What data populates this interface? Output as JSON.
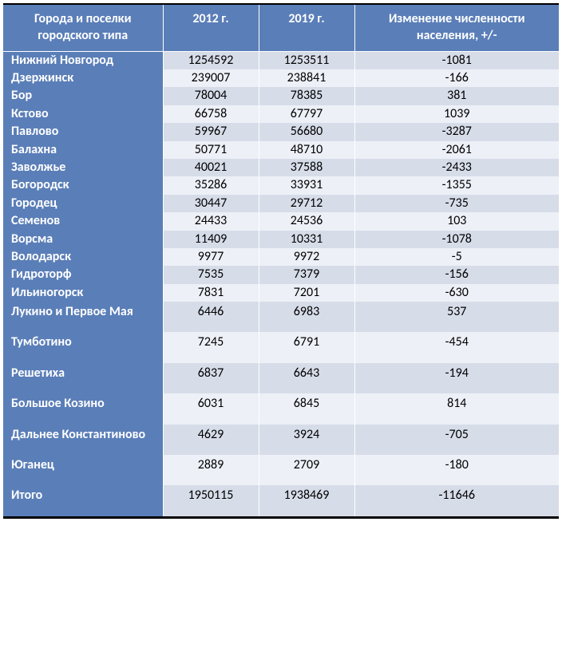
{
  "table": {
    "headers": {
      "city": "Города и поселки городского типа",
      "y2012": "2012 г.",
      "y2019": "2019 г.",
      "delta": "Изменение численности населения, +/-"
    },
    "rows": [
      {
        "city": "Нижний Новгород",
        "y2012": "1254592",
        "y2019": "1253511",
        "delta": "-1081",
        "tall": false
      },
      {
        "city": "Дзержинск",
        "y2012": "239007",
        "y2019": "238841",
        "delta": "-166",
        "tall": false
      },
      {
        "city": "Бор",
        "y2012": "78004",
        "y2019": "78385",
        "delta": "381",
        "tall": false
      },
      {
        "city": "Кстово",
        "y2012": "66758",
        "y2019": "67797",
        "delta": "1039",
        "tall": false
      },
      {
        "city": "Павлово",
        "y2012": "59967",
        "y2019": "56680",
        "delta": "-3287",
        "tall": false
      },
      {
        "city": "Балахна",
        "y2012": "50771",
        "y2019": "48710",
        "delta": "-2061",
        "tall": false
      },
      {
        "city": "Заволжье",
        "y2012": "40021",
        "y2019": "37588",
        "delta": "-2433",
        "tall": false
      },
      {
        "city": "Богородск",
        "y2012": "35286",
        "y2019": "33931",
        "delta": "-1355",
        "tall": false
      },
      {
        "city": "Городец",
        "y2012": "30447",
        "y2019": "29712",
        "delta": "-735",
        "tall": false
      },
      {
        "city": "Семенов",
        "y2012": "24433",
        "y2019": "24536",
        "delta": "103",
        "tall": false
      },
      {
        "city": "Ворсма",
        "y2012": "11409",
        "y2019": "10331",
        "delta": "-1078",
        "tall": false
      },
      {
        "city": "Володарск",
        "y2012": "9977",
        "y2019": "9972",
        "delta": "-5",
        "tall": false
      },
      {
        "city": "Гидроторф",
        "y2012": "7535",
        "y2019": "7379",
        "delta": "-156",
        "tall": false
      },
      {
        "city": "Ильиногорск",
        "y2012": "7831",
        "y2019": "7201",
        "delta": "-630",
        "tall": false
      },
      {
        "city": "Лукино и Первое Мая",
        "y2012": "6446",
        "y2019": "6983",
        "delta": "537",
        "tall": true
      },
      {
        "city": "Тумботино",
        "y2012": "7245",
        "y2019": "6791",
        "delta": "-454",
        "tall": true
      },
      {
        "city": "Решетиха",
        "y2012": "6837",
        "y2019": "6643",
        "delta": "-194",
        "tall": true
      },
      {
        "city": "Большое Козино",
        "y2012": "6031",
        "y2019": "6845",
        "delta": "814",
        "tall": true
      },
      {
        "city": "Дальнее Константиново",
        "y2012": "4629",
        "y2019": "3924",
        "delta": "-705",
        "tall": true
      },
      {
        "city": "Юганец",
        "y2012": "2889",
        "y2019": "2709",
        "delta": "-180",
        "tall": true
      },
      {
        "city": "Итого",
        "y2012": "1950115",
        "y2019": "1938469",
        "delta": "-11646",
        "tall": true
      }
    ],
    "colors": {
      "header_bg": "#5a7eb8",
      "header_text": "#ffffff",
      "row_odd_bg": "#d6dce8",
      "row_even_bg": "#edf0f7",
      "border_top": "#000000",
      "cell_border": "#ffffff"
    }
  }
}
